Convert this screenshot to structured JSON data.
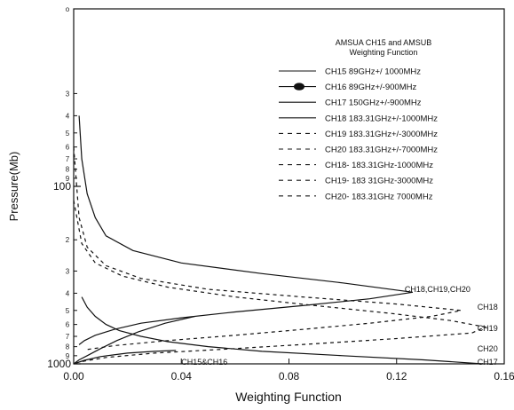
{
  "chart_data": {
    "type": "line",
    "xlabel": "Weighting Function",
    "ylabel": "Pressure(Mb)",
    "xlim": [
      0,
      0.16
    ],
    "ylim": [
      1000,
      10
    ],
    "yscale": "log",
    "x_ticks": [
      "0.00",
      "0.04",
      "0.08",
      "0.12",
      "0.16"
    ],
    "y_major_labels": [
      {
        "p": 100,
        "label": "100"
      },
      {
        "p": 1000,
        "label": "1000"
      }
    ],
    "y_minor_labels": [
      {
        "p": 10,
        "label": "o"
      },
      {
        "p": 30,
        "label": "3"
      },
      {
        "p": 40,
        "label": "4"
      },
      {
        "p": 50,
        "label": "5"
      },
      {
        "p": 60,
        "label": "6"
      },
      {
        "p": 70,
        "label": "7"
      },
      {
        "p": 80,
        "label": "8"
      },
      {
        "p": 90,
        "label": "9"
      },
      {
        "p": 200,
        "label": "2"
      },
      {
        "p": 300,
        "label": "3"
      },
      {
        "p": 400,
        "label": "4"
      },
      {
        "p": 500,
        "label": "5"
      },
      {
        "p": 600,
        "label": "6"
      },
      {
        "p": 700,
        "label": "7"
      },
      {
        "p": 800,
        "label": "8"
      },
      {
        "p": 900,
        "label": "9"
      }
    ],
    "legend_title": [
      "AMSUA CH15 and AMSUB",
      "Weighting Function"
    ],
    "legend_placement": "top-right",
    "series": [
      {
        "name": "CH15 89GHz+/ 1000MHz",
        "style": "solid",
        "points": [
          [
            0.0,
            1000
          ],
          [
            0.002,
            950
          ],
          [
            0.005,
            900
          ],
          [
            0.01,
            820
          ],
          [
            0.016,
            740
          ],
          [
            0.024,
            660
          ],
          [
            0.034,
            590
          ],
          [
            0.045,
            540
          ]
        ]
      },
      {
        "name": "CH16 89GHz+/-900MHz",
        "style": "solid",
        "points": [
          [
            0.0,
            1000
          ],
          [
            0.004,
            955
          ],
          [
            0.01,
            910
          ],
          [
            0.02,
            870
          ],
          [
            0.03,
            850
          ],
          [
            0.038,
            840
          ]
        ]
      },
      {
        "name": "CH17 150GHz+/-900MHz",
        "style": "solid",
        "points": [
          [
            0.003,
            420
          ],
          [
            0.005,
            480
          ],
          [
            0.008,
            540
          ],
          [
            0.012,
            600
          ],
          [
            0.017,
            650
          ],
          [
            0.025,
            700
          ],
          [
            0.035,
            750
          ],
          [
            0.05,
            800
          ],
          [
            0.07,
            850
          ],
          [
            0.1,
            900
          ],
          [
            0.13,
            950
          ],
          [
            0.152,
            1000
          ]
        ]
      },
      {
        "name": "CH18 183.31GHz+/-1000MHz",
        "style": "solid",
        "points": [
          [
            0.002,
            40
          ],
          [
            0.003,
            70
          ],
          [
            0.005,
            110
          ],
          [
            0.008,
            150
          ],
          [
            0.012,
            190
          ],
          [
            0.022,
            230
          ],
          [
            0.04,
            270
          ],
          [
            0.07,
            310
          ],
          [
            0.1,
            350
          ],
          [
            0.126,
            395
          ],
          [
            0.11,
            430
          ],
          [
            0.085,
            470
          ],
          [
            0.06,
            510
          ],
          [
            0.04,
            550
          ],
          [
            0.025,
            590
          ],
          [
            0.015,
            640
          ],
          [
            0.008,
            690
          ],
          [
            0.004,
            740
          ],
          [
            0.002,
            780
          ]
        ]
      },
      {
        "name": "CH19 183.31GHz+/-3000MHz",
        "style": "dashed",
        "points": [
          [
            0.0,
            60
          ],
          [
            0.002,
            150
          ],
          [
            0.005,
            220
          ],
          [
            0.012,
            280
          ],
          [
            0.025,
            330
          ],
          [
            0.05,
            380
          ],
          [
            0.085,
            420
          ],
          [
            0.12,
            460
          ],
          [
            0.144,
            500
          ],
          [
            0.133,
            540
          ],
          [
            0.11,
            590
          ],
          [
            0.085,
            640
          ],
          [
            0.06,
            690
          ],
          [
            0.035,
            740
          ],
          [
            0.015,
            790
          ],
          [
            0.005,
            830
          ]
        ]
      },
      {
        "name": "CH20 183.31GHz+/-7000MHz",
        "style": "dashed",
        "points": [
          [
            0.0,
            120
          ],
          [
            0.003,
            210
          ],
          [
            0.008,
            270
          ],
          [
            0.018,
            320
          ],
          [
            0.035,
            370
          ],
          [
            0.06,
            420
          ],
          [
            0.09,
            470
          ],
          [
            0.118,
            520
          ],
          [
            0.14,
            570
          ],
          [
            0.153,
            620
          ],
          [
            0.148,
            670
          ],
          [
            0.12,
            720
          ],
          [
            0.09,
            770
          ],
          [
            0.06,
            820
          ],
          [
            0.03,
            870
          ],
          [
            0.012,
            920
          ],
          [
            0.003,
            970
          ]
        ]
      }
    ],
    "legend_only_series": [
      {
        "name": "CH18- 183.31GHz-1000MHz",
        "style": "dashed"
      },
      {
        "name": "CH19- 183 31GHz-3000MHz",
        "style": "dashed"
      },
      {
        "name": "CH20- 183.31GHz 7000MHz",
        "style": "dashed"
      }
    ],
    "annotations": [
      {
        "text": "CH18,CH19,CH20",
        "x": 0.123,
        "p": 380
      },
      {
        "text": "CH18",
        "x": 0.15,
        "p": 480
      },
      {
        "text": "CH19",
        "x": 0.15,
        "p": 630
      },
      {
        "text": "CH20",
        "x": 0.15,
        "p": 820
      },
      {
        "text": "CH17",
        "x": 0.15,
        "p": 980
      },
      {
        "text": "CH15&CH16",
        "x": 0.04,
        "p": 980
      }
    ]
  }
}
